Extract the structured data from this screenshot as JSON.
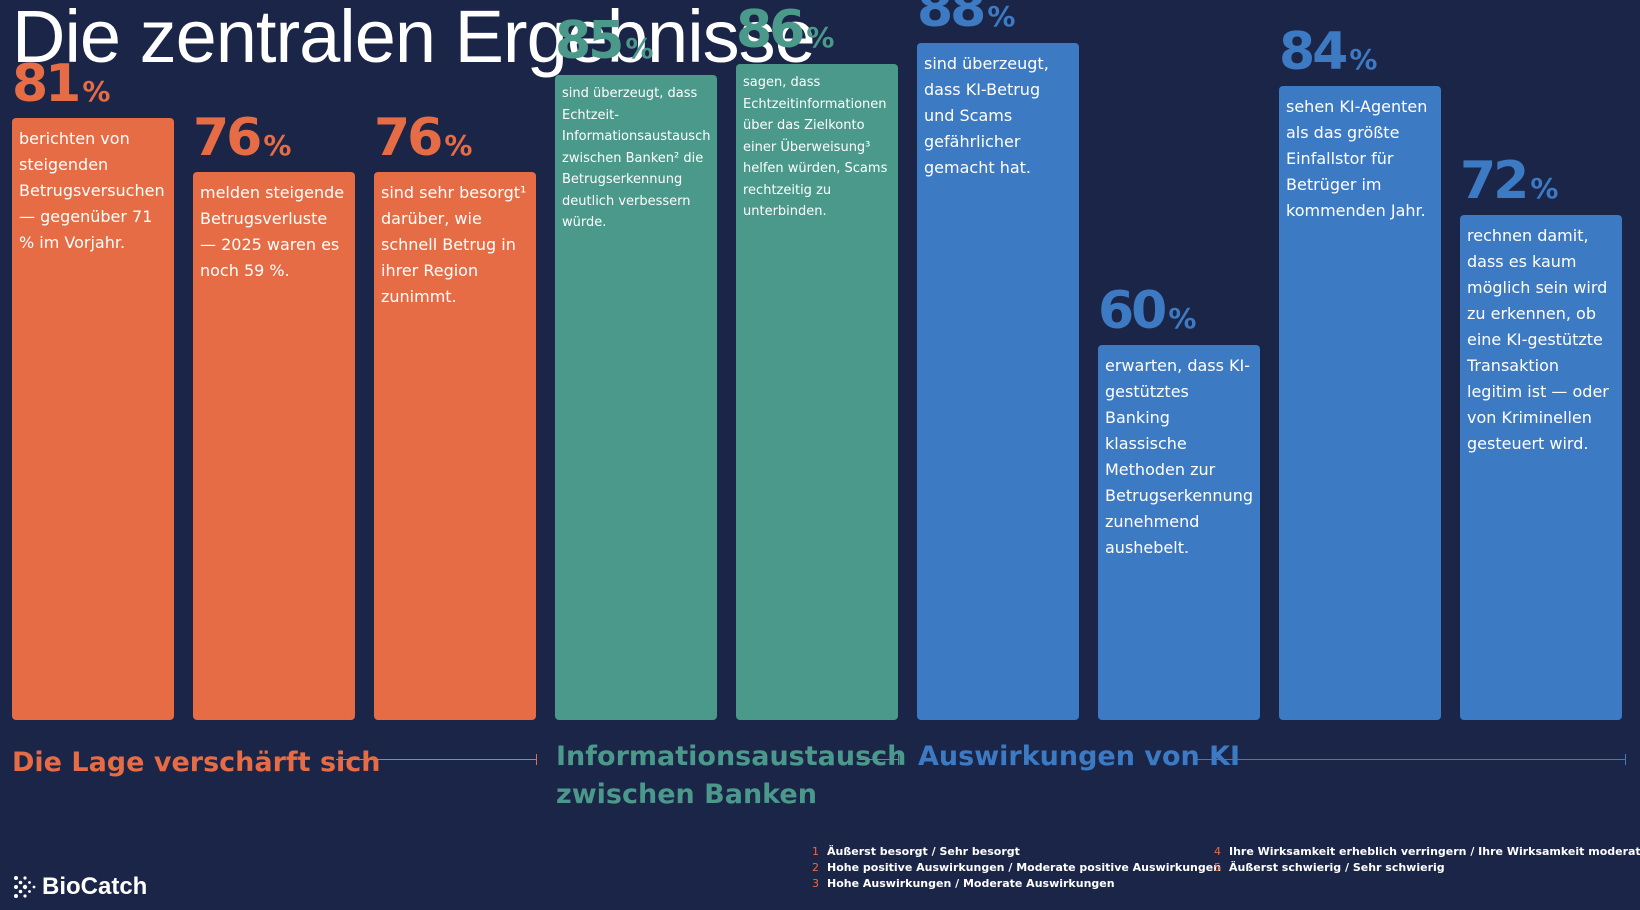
{
  "title": "Die zentralen Ergebnisse",
  "colors": {
    "background": "#1b2547",
    "orange": "#e56c45",
    "teal": "#4a998a",
    "blue": "#3d7ac4"
  },
  "chart_data": {
    "type": "bar",
    "unit": "%",
    "categories": [
      "berichten von steigenden Betrugsversuchen — gegenüber 71 % im Vorjahr.",
      "melden steigende Betrugsverluste — 2025 waren es noch 59 %.",
      "sind sehr besorgt¹ darüber, wie schnell Betrug in ihrer Region zunimmt.",
      "sind überzeugt, dass Echtzeit-Informationsaustausch zwischen Banken² die Betrugserkennung deutlich verbessern würde.",
      "sagen, dass Echtzeitinformationen über das Zielkonto einer Überweisung³ helfen würden, Scams rechtzeitig zu unterbinden.",
      "sind überzeugt, dass KI-Betrug und Scams gefährlicher gemacht hat.",
      "erwarten, dass KI-gestütztes Banking klassische Methoden zur Betrugserkennung zunehmend aushebelt.",
      "sehen KI-Agenten als das größte Einfallstor für Betrüger im kommenden Jahr.",
      "rechnen damit, dass es kaum möglich sein wird zu erkennen, ob eine KI-gestützte Transaktion legitim ist — oder von Kriminellen gesteuert wird."
    ],
    "values": [
      81,
      76,
      76,
      85,
      86,
      88,
      60,
      84,
      72
    ],
    "percent_labels": [
      "81",
      "76",
      "76",
      "85",
      "86",
      "88",
      "60",
      "84",
      "72"
    ],
    "groups": [
      {
        "label": "Die Lage verschärft sich",
        "bars": [
          0,
          1,
          2
        ],
        "color": "#e56c45"
      },
      {
        "label": "Informationsaustausch zwischen Banken",
        "bars": [
          3,
          4
        ],
        "color": "#4a998a"
      },
      {
        "label": "Auswirkungen von KI",
        "bars": [
          5,
          6,
          7,
          8
        ],
        "color": "#3d7ac4"
      }
    ],
    "ylim": [
      0,
      100
    ]
  },
  "footnotes": [
    {
      "num": "1",
      "text": "Äußerst besorgt / Sehr besorgt"
    },
    {
      "num": "2",
      "text": "Hohe positive Auswirkungen / Moderate positive Auswirkungen"
    },
    {
      "num": "3",
      "text": "Hohe Auswirkungen / Moderate Auswirkungen"
    },
    {
      "num": "4",
      "text": "Ihre Wirksamkeit erheblich verringern / Ihre Wirksamkeit moderat verringern"
    },
    {
      "num": "5",
      "text": "Äußerst schwierig / Sehr schwierig"
    }
  ],
  "logo": {
    "text": "BioCatch",
    "icon": "biocatch-logo-icon"
  }
}
